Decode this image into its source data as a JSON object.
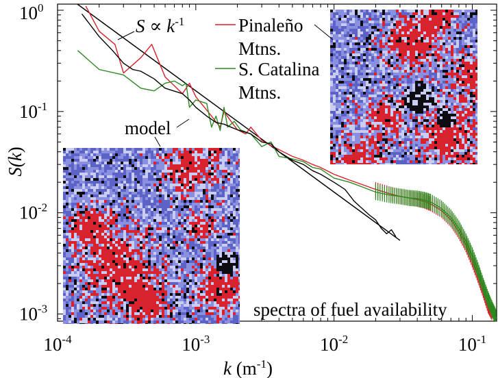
{
  "chart_data": {
    "type": "line",
    "scale": {
      "x": "log",
      "y": "log"
    },
    "xlim": [
      0.0001,
      0.15
    ],
    "ylim": [
      0.00085,
      1.15
    ],
    "xlabel": {
      "var": "k",
      "unit_prefix": " (m",
      "unit_exp": "-1",
      "unit_suffix": ")"
    },
    "ylabel": {
      "prefix": "S(",
      "var": "k",
      "suffix": ")"
    },
    "x_ticks": [
      {
        "value": 0.0001,
        "base": "10",
        "exp": "-4"
      },
      {
        "value": 0.001,
        "base": "10",
        "exp": "-3"
      },
      {
        "value": 0.01,
        "base": "10",
        "exp": "-2"
      },
      {
        "value": 0.1,
        "base": "10",
        "exp": "-1"
      }
    ],
    "y_ticks": [
      {
        "value": 1,
        "base": "10",
        "exp": "0"
      },
      {
        "value": 0.1,
        "base": "10",
        "exp": "-1"
      },
      {
        "value": 0.01,
        "base": "10",
        "exp": "-2"
      },
      {
        "value": 0.001,
        "base": "10",
        "exp": "-3"
      }
    ],
    "series": [
      {
        "name": "Pinaleño Mtns.",
        "color": "#d81e2a",
        "points": [
          [
            0.00016,
            1.1
          ],
          [
            0.0002,
            0.62
          ],
          [
            0.00026,
            0.46
          ],
          [
            0.0003,
            0.24
          ],
          [
            0.0004,
            0.34
          ],
          [
            0.00048,
            0.46
          ],
          [
            0.0006,
            0.22
          ],
          [
            0.0008,
            0.15
          ],
          [
            0.0009,
            0.19
          ],
          [
            0.001,
            0.14
          ],
          [
            0.0013,
            0.09
          ],
          [
            0.0015,
            0.07
          ],
          [
            0.0016,
            0.1
          ],
          [
            0.0018,
            0.08
          ],
          [
            0.002,
            0.066
          ],
          [
            0.0023,
            0.06
          ],
          [
            0.0025,
            0.07
          ],
          [
            0.003,
            0.052
          ],
          [
            0.0035,
            0.046
          ],
          [
            0.004,
            0.042
          ],
          [
            0.005,
            0.036
          ],
          [
            0.006,
            0.033
          ],
          [
            0.007,
            0.03
          ],
          [
            0.008,
            0.028
          ],
          [
            0.01,
            0.024
          ],
          [
            0.013,
            0.021
          ],
          [
            0.016,
            0.019
          ],
          [
            0.02,
            0.017
          ],
          [
            0.025,
            0.0155
          ],
          [
            0.03,
            0.0145
          ],
          [
            0.035,
            0.014
          ],
          [
            0.04,
            0.0135
          ],
          [
            0.045,
            0.013
          ],
          [
            0.05,
            0.0122
          ],
          [
            0.06,
            0.0105
          ],
          [
            0.07,
            0.0085
          ],
          [
            0.08,
            0.0065
          ],
          [
            0.09,
            0.0048
          ],
          [
            0.1,
            0.0034
          ],
          [
            0.11,
            0.0024
          ],
          [
            0.12,
            0.0017
          ],
          [
            0.13,
            0.0012
          ],
          [
            0.14,
            0.001
          ]
        ]
      },
      {
        "name": "S. Catalina Mtns.",
        "color": "#2a8a1e",
        "points": [
          [
            0.00014,
            0.4
          ],
          [
            0.0002,
            0.26
          ],
          [
            0.0003,
            0.23
          ],
          [
            0.0004,
            0.17
          ],
          [
            0.0005,
            0.16
          ],
          [
            0.0006,
            0.19
          ],
          [
            0.0007,
            0.2
          ],
          [
            0.0008,
            0.18
          ],
          [
            0.00085,
            0.19
          ],
          [
            0.0009,
            0.11
          ],
          [
            0.001,
            0.13
          ],
          [
            0.0012,
            0.12
          ],
          [
            0.0013,
            0.07
          ],
          [
            0.0014,
            0.09
          ],
          [
            0.0015,
            0.065
          ],
          [
            0.0016,
            0.11
          ],
          [
            0.0017,
            0.07
          ],
          [
            0.0019,
            0.08
          ],
          [
            0.0021,
            0.066
          ],
          [
            0.0025,
            0.06
          ],
          [
            0.003,
            0.045
          ],
          [
            0.0035,
            0.05
          ],
          [
            0.004,
            0.036
          ],
          [
            0.005,
            0.034
          ],
          [
            0.006,
            0.032
          ],
          [
            0.007,
            0.028
          ],
          [
            0.008,
            0.027
          ],
          [
            0.01,
            0.022
          ],
          [
            0.013,
            0.02
          ],
          [
            0.016,
            0.018
          ],
          [
            0.02,
            0.016
          ],
          [
            0.025,
            0.015
          ],
          [
            0.03,
            0.0145
          ],
          [
            0.035,
            0.014
          ],
          [
            0.04,
            0.0138
          ],
          [
            0.045,
            0.0134
          ],
          [
            0.05,
            0.0128
          ],
          [
            0.06,
            0.011
          ],
          [
            0.07,
            0.009
          ],
          [
            0.08,
            0.007
          ],
          [
            0.09,
            0.0052
          ],
          [
            0.1,
            0.0038
          ],
          [
            0.11,
            0.0027
          ],
          [
            0.12,
            0.0019
          ],
          [
            0.13,
            0.0014
          ],
          [
            0.14,
            0.0011
          ],
          [
            0.15,
            0.0009
          ]
        ]
      },
      {
        "name": "model",
        "color": "#000000",
        "points": [
          [
            0.00015,
            0.92
          ],
          [
            0.0002,
            0.55
          ],
          [
            0.00025,
            0.4
          ],
          [
            0.0003,
            0.3
          ],
          [
            0.00035,
            0.26
          ],
          [
            0.0004,
            0.25
          ],
          [
            0.0005,
            0.21
          ],
          [
            0.0006,
            0.17
          ],
          [
            0.0008,
            0.15
          ],
          [
            0.0009,
            0.13
          ],
          [
            0.001,
            0.11
          ],
          [
            0.0012,
            0.09
          ],
          [
            0.0014,
            0.078
          ],
          [
            0.0016,
            0.075
          ],
          [
            0.0018,
            0.07
          ],
          [
            0.002,
            0.066
          ],
          [
            0.0025,
            0.06
          ],
          [
            0.003,
            0.05
          ],
          [
            0.0035,
            0.048
          ],
          [
            0.004,
            0.04
          ],
          [
            0.005,
            0.033
          ],
          [
            0.006,
            0.03
          ],
          [
            0.007,
            0.026
          ],
          [
            0.008,
            0.024
          ],
          [
            0.01,
            0.02
          ],
          [
            0.012,
            0.017
          ],
          [
            0.014,
            0.013
          ],
          [
            0.016,
            0.011
          ],
          [
            0.018,
            0.0095
          ],
          [
            0.02,
            0.0085
          ],
          [
            0.022,
            0.007
          ],
          [
            0.024,
            0.0062
          ],
          [
            0.026,
            0.0068
          ],
          [
            0.028,
            0.0058
          ]
        ]
      }
    ],
    "power_law": {
      "label_var": "S",
      "label_mid": " ∝ ",
      "label_k": "k",
      "label_exp": "-1",
      "x": [
        0.0001,
        0.03
      ],
      "y_at_start": 1.6
    },
    "legend": [
      {
        "label_lines": [
          "Pinaleño",
          "Mtns."
        ],
        "color": "#d81e2a"
      },
      {
        "label_lines": [
          "S. Catalina",
          "Mtns."
        ],
        "color": "#2a8a1e"
      }
    ],
    "annotations": {
      "model_label": "model",
      "caption": "spectra of fuel availability"
    }
  },
  "insets": {
    "field_colors": {
      "light": "#8a8fe0",
      "mid": "#5d63c6",
      "fire": "#d8222e",
      "dark": "#0c0c12",
      "pale": "#c9cdf2"
    }
  }
}
